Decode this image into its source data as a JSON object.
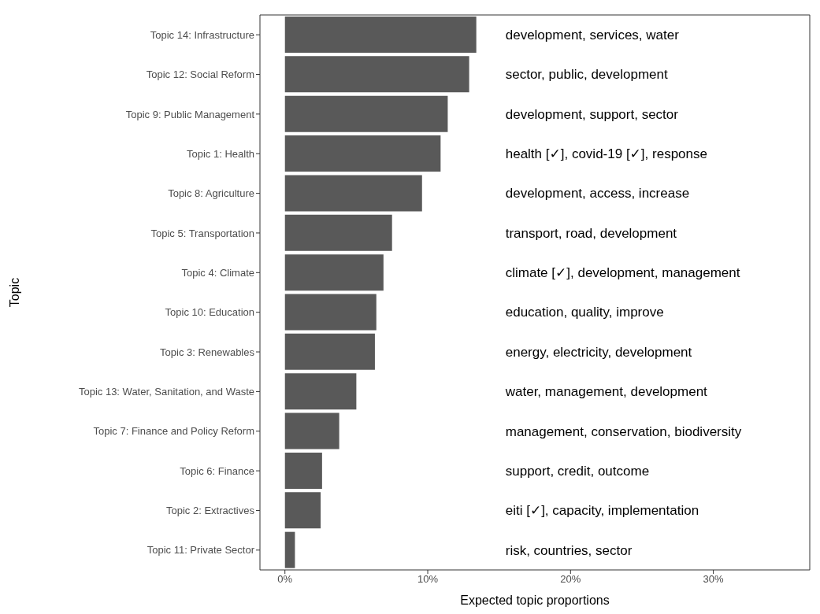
{
  "chart_data": {
    "type": "bar",
    "orientation": "horizontal",
    "xlabel": "Expected topic proportions",
    "ylabel": "Topic",
    "categories": [
      "Topic 14: Infrastructure",
      "Topic 12: Social Reform",
      "Topic 9: Public Management",
      "Topic 1: Health",
      "Topic 8: Agriculture",
      "Topic 5: Transportation",
      "Topic 4: Climate",
      "Topic 10: Education",
      "Topic 3: Renewables",
      "Topic 13: Water, Sanitation, and Waste",
      "Topic 7: Finance and Policy Reform",
      "Topic 6: Finance",
      "Topic 2: Extractives",
      "Topic 11: Private Sector"
    ],
    "values": [
      13.4,
      12.9,
      11.4,
      10.9,
      9.6,
      7.5,
      6.9,
      6.4,
      6.3,
      5.0,
      3.8,
      2.6,
      2.5,
      0.7
    ],
    "color": "#595959",
    "xlim": [
      -1.75,
      36.75
    ],
    "xticks": [
      {
        "value": 0,
        "label": "0%"
      },
      {
        "value": 10,
        "label": "10%"
      },
      {
        "value": 20,
        "label": "20%"
      },
      {
        "value": 30,
        "label": "30%"
      }
    ],
    "grid": false,
    "legend": false,
    "annotations": [
      "development, services, water",
      "sector, public, development",
      "development, support, sector",
      "health [✓], covid-19 [✓], response",
      "development, access, increase",
      "transport, road, development",
      "climate [✓], development, management",
      "education, quality, improve",
      "energy, electricity, development",
      "water, management, development",
      "management, conservation, biodiversity",
      "support, credit, outcome",
      "eiti [✓], capacity, implementation",
      "risk, countries, sector"
    ]
  }
}
